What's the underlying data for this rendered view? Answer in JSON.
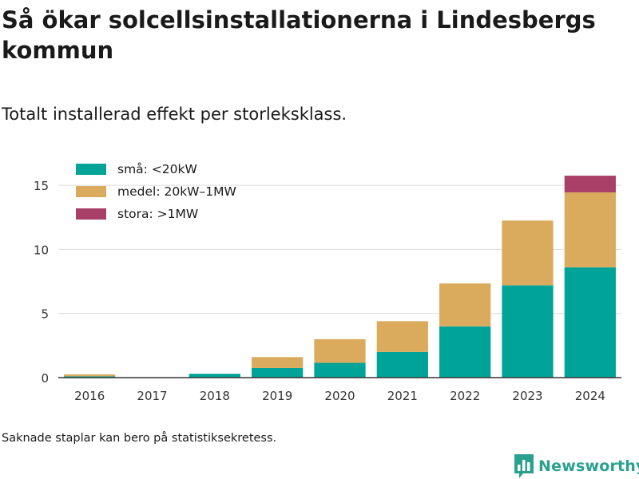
{
  "header": {
    "title": "Så ökar solcellsinstallationerna i Lindesbergs kommun",
    "subtitle": "Totalt installerad effekt per storleksklass."
  },
  "footer": {
    "note": "Saknade staplar kan bero på statistiksekretess.",
    "brand": "Newsworthy"
  },
  "colors": {
    "small": "#00a398",
    "medium": "#dbab5d",
    "large": "#a83f66",
    "brand": "#2aa18f"
  },
  "icons": {
    "brand": "bar-chart-logo-icon"
  },
  "chart_data": {
    "type": "bar",
    "stacked": true,
    "categories": [
      "2016",
      "2017",
      "2018",
      "2019",
      "2020",
      "2021",
      "2022",
      "2023",
      "2024"
    ],
    "series": [
      {
        "name": "små: <20kW",
        "color": "#00a398",
        "values": [
          0.1,
          0,
          0.3,
          0.75,
          1.15,
          2.0,
          4.0,
          7.2,
          8.6
        ]
      },
      {
        "name": "medel: 20kW–1MW",
        "color": "#dbab5d",
        "values": [
          0.15,
          0,
          0,
          0.85,
          1.85,
          2.4,
          3.35,
          5.05,
          5.85
        ]
      },
      {
        "name": "stora: >1MW",
        "color": "#a83f66",
        "values": [
          0,
          0,
          0,
          0,
          0,
          0,
          0,
          0,
          1.3
        ]
      }
    ],
    "ylim": [
      0,
      17
    ],
    "yticks": [
      0,
      5,
      10,
      15
    ],
    "xlabel": "",
    "ylabel": "",
    "grid": true,
    "legend_position": "top-left"
  }
}
